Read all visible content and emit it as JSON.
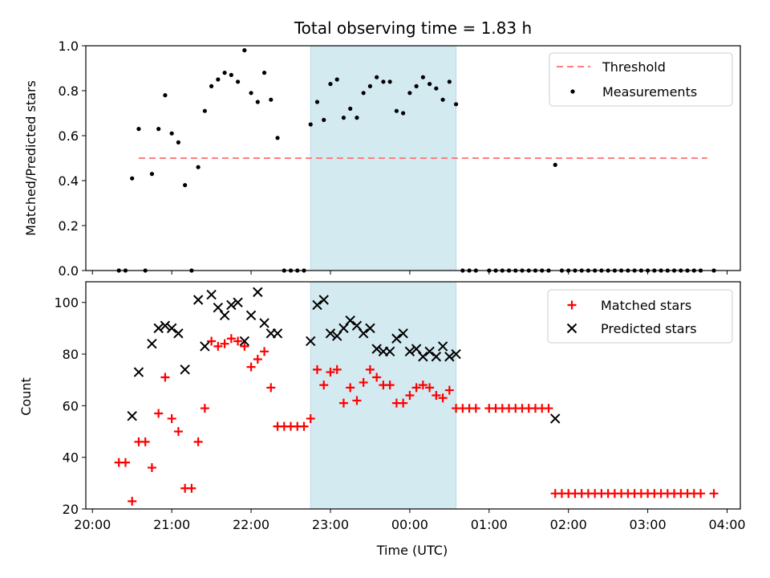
{
  "chart_data": [
    {
      "type": "scatter",
      "title": "Total observing time = 1.83 h",
      "xlabel": "",
      "ylabel": "Matched/Predicted stars",
      "ylim": [
        0,
        1.0
      ],
      "yticks": [
        "0.0",
        "0.2",
        "0.4",
        "0.6",
        "0.8",
        "1.0"
      ],
      "shaded_region": {
        "x_start": "22:45",
        "x_end": "00:35",
        "color": "#d4eaf1"
      },
      "threshold": {
        "name": "Threshold",
        "value": 0.5,
        "x_start": "20:35",
        "x_end": "03:45",
        "color": "#ff7f7f"
      },
      "legend": [
        "Threshold",
        "Measurements"
      ],
      "legend_position": "upper right",
      "series": [
        {
          "name": "Measurements",
          "color": "#000000",
          "points": [
            [
              "20:20",
              0
            ],
            [
              "20:25",
              0
            ],
            [
              "20:30",
              0.41
            ],
            [
              "20:35",
              0.63
            ],
            [
              "20:40",
              0
            ],
            [
              "20:45",
              0.43
            ],
            [
              "20:50",
              0.63
            ],
            [
              "20:55",
              0.78
            ],
            [
              "21:00",
              0.61
            ],
            [
              "21:05",
              0.57
            ],
            [
              "21:10",
              0.38
            ],
            [
              "21:15",
              0
            ],
            [
              "21:20",
              0.46
            ],
            [
              "21:25",
              0.71
            ],
            [
              "21:30",
              0.82
            ],
            [
              "21:35",
              0.85
            ],
            [
              "21:40",
              0.88
            ],
            [
              "21:45",
              0.87
            ],
            [
              "21:50",
              0.84
            ],
            [
              "21:55",
              0.98
            ],
            [
              "22:00",
              0.79
            ],
            [
              "22:05",
              0.75
            ],
            [
              "22:10",
              0.88
            ],
            [
              "22:15",
              0.76
            ],
            [
              "22:20",
              0.59
            ],
            [
              "22:25",
              0
            ],
            [
              "22:30",
              0
            ],
            [
              "22:35",
              0
            ],
            [
              "22:40",
              0
            ],
            [
              "22:45",
              0.65
            ],
            [
              "22:50",
              0.75
            ],
            [
              "22:55",
              0.67
            ],
            [
              "23:00",
              0.83
            ],
            [
              "23:05",
              0.85
            ],
            [
              "23:10",
              0.68
            ],
            [
              "23:15",
              0.72
            ],
            [
              "23:20",
              0.68
            ],
            [
              "23:25",
              0.79
            ],
            [
              "23:30",
              0.82
            ],
            [
              "23:35",
              0.86
            ],
            [
              "23:40",
              0.84
            ],
            [
              "23:45",
              0.84
            ],
            [
              "23:50",
              0.71
            ],
            [
              "23:55",
              0.7
            ],
            [
              "00:00",
              0.79
            ],
            [
              "00:05",
              0.82
            ],
            [
              "00:10",
              0.86
            ],
            [
              "00:15",
              0.83
            ],
            [
              "00:20",
              0.81
            ],
            [
              "00:25",
              0.76
            ],
            [
              "00:30",
              0.84
            ],
            [
              "00:35",
              0.74
            ],
            [
              "00:40",
              0
            ],
            [
              "00:45",
              0
            ],
            [
              "00:50",
              0
            ],
            [
              "01:00",
              0
            ],
            [
              "01:05",
              0
            ],
            [
              "01:10",
              0
            ],
            [
              "01:15",
              0
            ],
            [
              "01:20",
              0
            ],
            [
              "01:25",
              0
            ],
            [
              "01:30",
              0
            ],
            [
              "01:35",
              0
            ],
            [
              "01:40",
              0
            ],
            [
              "01:45",
              0
            ],
            [
              "01:50",
              0.47
            ],
            [
              "01:55",
              0
            ],
            [
              "02:00",
              0
            ],
            [
              "02:05",
              0
            ],
            [
              "02:10",
              0
            ],
            [
              "02:15",
              0
            ],
            [
              "02:20",
              0
            ],
            [
              "02:25",
              0
            ],
            [
              "02:30",
              0
            ],
            [
              "02:35",
              0
            ],
            [
              "02:40",
              0
            ],
            [
              "02:45",
              0
            ],
            [
              "02:50",
              0
            ],
            [
              "02:55",
              0
            ],
            [
              "03:00",
              0
            ],
            [
              "03:05",
              0
            ],
            [
              "03:10",
              0
            ],
            [
              "03:15",
              0
            ],
            [
              "03:20",
              0
            ],
            [
              "03:25",
              0
            ],
            [
              "03:30",
              0
            ],
            [
              "03:35",
              0
            ],
            [
              "03:40",
              0
            ],
            [
              "03:50",
              0
            ]
          ]
        }
      ]
    },
    {
      "type": "scatter",
      "xlabel": "Time (UTC)",
      "ylabel": "Count",
      "ylim": [
        20,
        108
      ],
      "yticks": [
        "20",
        "40",
        "60",
        "80",
        "100"
      ],
      "xticks": [
        "20:00",
        "21:00",
        "22:00",
        "23:00",
        "00:00",
        "01:00",
        "02:00",
        "03:00",
        "04:00"
      ],
      "xlim": [
        "19:55",
        "04:10"
      ],
      "shaded_region": {
        "x_start": "22:45",
        "x_end": "00:35",
        "color": "#d4eaf1"
      },
      "legend": [
        "Matched stars",
        "Predicted stars"
      ],
      "legend_position": "upper right",
      "series": [
        {
          "name": "Matched stars",
          "color": "#ff0000",
          "points": [
            [
              "20:20",
              38
            ],
            [
              "20:25",
              38
            ],
            [
              "20:30",
              23
            ],
            [
              "20:35",
              46
            ],
            [
              "20:40",
              46
            ],
            [
              "20:45",
              36
            ],
            [
              "20:50",
              57
            ],
            [
              "20:55",
              71
            ],
            [
              "21:00",
              55
            ],
            [
              "21:05",
              50
            ],
            [
              "21:10",
              28
            ],
            [
              "21:15",
              28
            ],
            [
              "21:20",
              46
            ],
            [
              "21:25",
              59
            ],
            [
              "21:30",
              85
            ],
            [
              "21:35",
              83
            ],
            [
              "21:40",
              84
            ],
            [
              "21:45",
              86
            ],
            [
              "21:50",
              85
            ],
            [
              "21:55",
              83
            ],
            [
              "22:00",
              75
            ],
            [
              "22:05",
              78
            ],
            [
              "22:10",
              81
            ],
            [
              "22:15",
              67
            ],
            [
              "22:20",
              52
            ],
            [
              "22:25",
              52
            ],
            [
              "22:30",
              52
            ],
            [
              "22:35",
              52
            ],
            [
              "22:40",
              52
            ],
            [
              "22:45",
              55
            ],
            [
              "22:50",
              74
            ],
            [
              "22:55",
              68
            ],
            [
              "23:00",
              73
            ],
            [
              "23:05",
              74
            ],
            [
              "23:10",
              61
            ],
            [
              "23:15",
              67
            ],
            [
              "23:20",
              62
            ],
            [
              "23:25",
              69
            ],
            [
              "23:30",
              74
            ],
            [
              "23:35",
              71
            ],
            [
              "23:40",
              68
            ],
            [
              "23:45",
              68
            ],
            [
              "23:50",
              61
            ],
            [
              "23:55",
              61
            ],
            [
              "00:00",
              64
            ],
            [
              "00:05",
              67
            ],
            [
              "00:10",
              68
            ],
            [
              "00:15",
              67
            ],
            [
              "00:20",
              64
            ],
            [
              "00:25",
              63
            ],
            [
              "00:30",
              66
            ],
            [
              "00:35",
              59
            ],
            [
              "00:40",
              59
            ],
            [
              "00:45",
              59
            ],
            [
              "00:50",
              59
            ],
            [
              "01:00",
              59
            ],
            [
              "01:05",
              59
            ],
            [
              "01:10",
              59
            ],
            [
              "01:15",
              59
            ],
            [
              "01:20",
              59
            ],
            [
              "01:25",
              59
            ],
            [
              "01:30",
              59
            ],
            [
              "01:35",
              59
            ],
            [
              "01:40",
              59
            ],
            [
              "01:45",
              59
            ],
            [
              "01:50",
              26
            ],
            [
              "01:55",
              26
            ],
            [
              "02:00",
              26
            ],
            [
              "02:05",
              26
            ],
            [
              "02:10",
              26
            ],
            [
              "02:15",
              26
            ],
            [
              "02:20",
              26
            ],
            [
              "02:25",
              26
            ],
            [
              "02:30",
              26
            ],
            [
              "02:35",
              26
            ],
            [
              "02:40",
              26
            ],
            [
              "02:45",
              26
            ],
            [
              "02:50",
              26
            ],
            [
              "02:55",
              26
            ],
            [
              "03:00",
              26
            ],
            [
              "03:05",
              26
            ],
            [
              "03:10",
              26
            ],
            [
              "03:15",
              26
            ],
            [
              "03:20",
              26
            ],
            [
              "03:25",
              26
            ],
            [
              "03:30",
              26
            ],
            [
              "03:35",
              26
            ],
            [
              "03:40",
              26
            ],
            [
              "03:50",
              26
            ]
          ]
        },
        {
          "name": "Predicted stars",
          "color": "#000000",
          "points": [
            [
              "20:30",
              56
            ],
            [
              "20:35",
              73
            ],
            [
              "20:45",
              84
            ],
            [
              "20:50",
              90
            ],
            [
              "20:55",
              91
            ],
            [
              "21:00",
              90
            ],
            [
              "21:05",
              88
            ],
            [
              "21:10",
              74
            ],
            [
              "21:20",
              101
            ],
            [
              "21:25",
              83
            ],
            [
              "21:30",
              103
            ],
            [
              "21:35",
              98
            ],
            [
              "21:40",
              95
            ],
            [
              "21:45",
              99
            ],
            [
              "21:50",
              100
            ],
            [
              "21:55",
              85
            ],
            [
              "22:00",
              95
            ],
            [
              "22:05",
              104
            ],
            [
              "22:10",
              92
            ],
            [
              "22:15",
              88
            ],
            [
              "22:20",
              88
            ],
            [
              "22:45",
              85
            ],
            [
              "22:50",
              99
            ],
            [
              "22:55",
              101
            ],
            [
              "23:00",
              88
            ],
            [
              "23:05",
              87
            ],
            [
              "23:10",
              90
            ],
            [
              "23:15",
              93
            ],
            [
              "23:20",
              91
            ],
            [
              "23:25",
              88
            ],
            [
              "23:30",
              90
            ],
            [
              "23:35",
              82
            ],
            [
              "23:40",
              81
            ],
            [
              "23:45",
              81
            ],
            [
              "23:50",
              86
            ],
            [
              "23:55",
              88
            ],
            [
              "00:00",
              81
            ],
            [
              "00:05",
              82
            ],
            [
              "00:10",
              79
            ],
            [
              "00:15",
              81
            ],
            [
              "00:20",
              79
            ],
            [
              "00:25",
              83
            ],
            [
              "00:30",
              79
            ],
            [
              "00:35",
              80
            ],
            [
              "01:50",
              55
            ]
          ]
        }
      ]
    }
  ]
}
